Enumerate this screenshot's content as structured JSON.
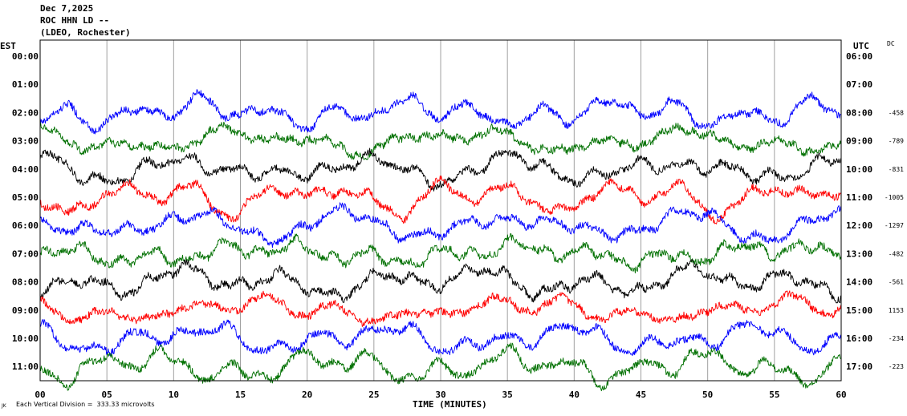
{
  "header": {
    "date": "Dec 7,2025",
    "station": "ROC HHN LD --",
    "network": "(LDEO, Rochester)"
  },
  "footer": {
    "mark": "JK",
    "scale_note": "Each Vertical Division =  333.33 microvolts"
  },
  "colors": {
    "trace_cycle": [
      "#000000",
      "#ff0000",
      "#0000ff",
      "#007000"
    ],
    "grid": "#a0a0a0",
    "axis": "#000000"
  },
  "chart_data": {
    "type": "line",
    "title": "",
    "xlabel": "TIME (MINUTES)",
    "left_axis_label": "EST",
    "right_axis_label": "UTC",
    "dc_label": "DC",
    "xlim": [
      0,
      60
    ],
    "x_ticks": [
      "00",
      "05",
      "10",
      "15",
      "20",
      "25",
      "30",
      "35",
      "40",
      "45",
      "50",
      "55",
      "60"
    ],
    "est_ticks": [
      "00:00",
      "01:00",
      "02:00",
      "03:00",
      "04:00",
      "05:00",
      "06:00",
      "07:00",
      "08:00",
      "09:00",
      "10:00",
      "11:00"
    ],
    "utc_ticks": [
      "06:00",
      "07:00",
      "08:00",
      "09:00",
      "10:00",
      "11:00",
      "12:00",
      "13:00",
      "14:00",
      "15:00",
      "16:00",
      "17:00"
    ],
    "dc_offsets": [
      "",
      "",
      "-458",
      "-789",
      "-831",
      "-1005",
      "-1297",
      "-482",
      "-561",
      "1153",
      "-234",
      "-223"
    ],
    "grid": "vertical",
    "traces": [
      {
        "hour": 2,
        "color": "#0000ff",
        "seed": 11
      },
      {
        "hour": 3,
        "color": "#007000",
        "seed": 23
      },
      {
        "hour": 4,
        "color": "#000000",
        "seed": 37
      },
      {
        "hour": 5,
        "color": "#ff0000",
        "seed": 41
      },
      {
        "hour": 6,
        "color": "#0000ff",
        "seed": 53
      },
      {
        "hour": 7,
        "color": "#007000",
        "seed": 67
      },
      {
        "hour": 8,
        "color": "#000000",
        "seed": 71
      },
      {
        "hour": 9,
        "color": "#ff0000",
        "seed": 83
      },
      {
        "hour": 10,
        "color": "#0000ff",
        "seed": 97
      },
      {
        "hour": 11,
        "color": "#007000",
        "seed": 101
      }
    ]
  }
}
